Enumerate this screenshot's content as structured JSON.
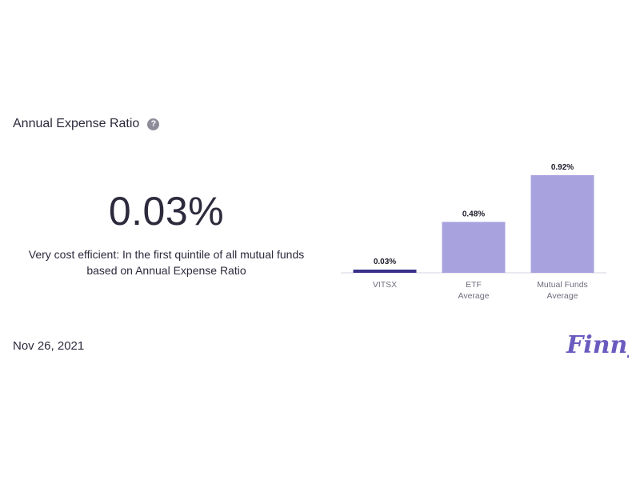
{
  "header": {
    "title": "Annual Expense Ratio",
    "help_icon": "?"
  },
  "metric": {
    "value": "0.03%",
    "description": "Very cost efficient: In the first quintile of all mutual funds based on Annual Expense Ratio"
  },
  "footer": {
    "date": "Nov 26, 2021",
    "brand": "Finny"
  },
  "colors": {
    "highlight_bar": "#3a2f8a",
    "bar": "#a8a3df",
    "brand": "#6a5bbf"
  },
  "chart_data": {
    "type": "bar",
    "categories": [
      [
        "VITSX"
      ],
      [
        "ETF",
        "Average"
      ],
      [
        "Mutual Funds",
        "Average"
      ]
    ],
    "values": [
      0.03,
      0.48,
      0.92
    ],
    "value_labels": [
      "0.03%",
      "0.48%",
      "0.92%"
    ],
    "highlight_index": 0,
    "title": "",
    "xlabel": "",
    "ylabel": "",
    "ylim": [
      0,
      0.92
    ],
    "grid": false,
    "legend": "none"
  }
}
